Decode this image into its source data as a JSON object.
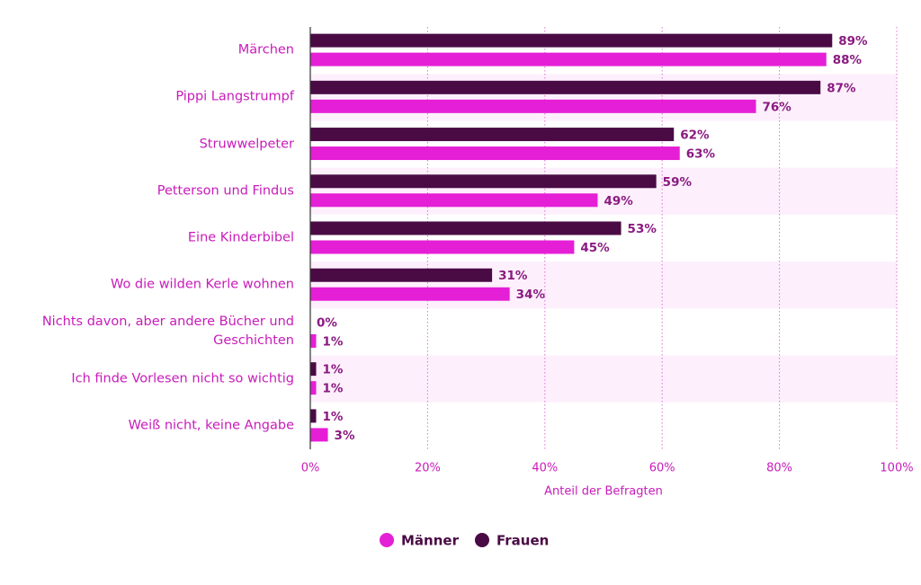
{
  "chart_data": {
    "type": "bar",
    "orientation": "horizontal",
    "categories": [
      "Märchen",
      "Pippi Langstrumpf",
      "Struwwelpeter",
      "Petterson und Findus",
      "Eine Kinderbibel",
      "Wo die wilden Kerle wohnen",
      "Nichts davon, aber andere Bücher und Geschichten",
      "Ich finde Vorlesen nicht so wichtig",
      "Weiß nicht, keine Angabe"
    ],
    "series": [
      {
        "name": "Männer",
        "color": "#e51fd6",
        "values": [
          88,
          76,
          63,
          49,
          45,
          34,
          1,
          1,
          3
        ],
        "value_labels": [
          "88%",
          "76%",
          "63%",
          "49%",
          "45%",
          "34%",
          "1%",
          "1%",
          "3%"
        ]
      },
      {
        "name": "Frauen",
        "color": "#4a0b45",
        "values": [
          89,
          87,
          62,
          59,
          53,
          31,
          0,
          1,
          1
        ],
        "value_labels": [
          "89%",
          "87%",
          "62%",
          "59%",
          "53%",
          "31%",
          "0%",
          "1%",
          "1%"
        ]
      }
    ],
    "x_label": "Anteil der Befragten",
    "xlim": [
      0,
      100
    ],
    "xticks": [
      {
        "value": 0,
        "label": "0%"
      },
      {
        "value": 20,
        "label": "20%"
      },
      {
        "value": 40,
        "label": "40%"
      },
      {
        "value": 60,
        "label": "60%"
      },
      {
        "value": 80,
        "label": "80%"
      },
      {
        "value": 100,
        "label": "100%"
      }
    ],
    "grid": true,
    "legend": "bottom"
  }
}
